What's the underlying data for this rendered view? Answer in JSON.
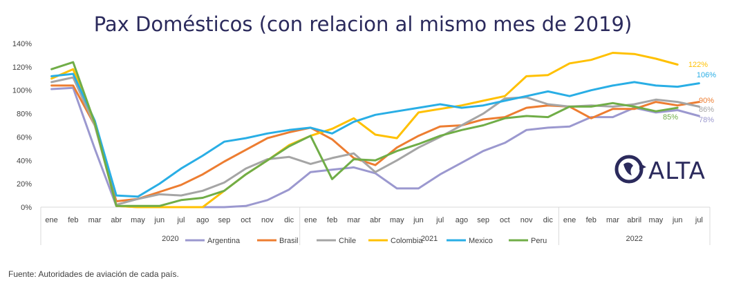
{
  "chart_data": {
    "type": "line",
    "title": "Pax Domésticos (con relacion al mismo mes de 2019)",
    "y_ticks": [
      "0%",
      "20%",
      "40%",
      "60%",
      "80%",
      "100%",
      "120%",
      "140%"
    ],
    "ylim": [
      0,
      140
    ],
    "categories": [
      "ene",
      "feb",
      "mar",
      "abr",
      "may",
      "jun",
      "jul",
      "ago",
      "sep",
      "oct",
      "nov",
      "dic",
      "ene",
      "feb",
      "mar",
      "abr",
      "may",
      "jun",
      "jul",
      "ago",
      "sep",
      "oct",
      "nov",
      "dic",
      "ene",
      "feb",
      "mar",
      "abril",
      "may",
      "jun",
      "jul"
    ],
    "years": [
      {
        "label": "2020",
        "start": 0,
        "end": 11
      },
      {
        "label": "2021",
        "start": 12,
        "end": 23
      },
      {
        "label": "2022",
        "start": 24,
        "end": 30
      }
    ],
    "series": [
      {
        "name": "Argentina",
        "color": "#9b98cf",
        "end_label": "78%",
        "values": [
          101,
          102,
          50,
          1,
          0,
          0,
          0,
          0,
          0,
          1,
          6,
          15,
          30,
          32,
          34,
          29,
          16,
          16,
          28,
          38,
          48,
          55,
          66,
          68,
          69,
          77,
          77,
          85,
          81,
          83,
          78
        ]
      },
      {
        "name": "Brasil",
        "color": "#ed7d31",
        "end_label": "90%",
        "values": [
          104,
          104,
          70,
          5,
          7,
          13,
          19,
          28,
          39,
          49,
          59,
          64,
          68,
          58,
          42,
          36,
          51,
          61,
          69,
          70,
          75,
          77,
          85,
          87,
          86,
          76,
          84,
          84,
          90,
          87,
          90
        ]
      },
      {
        "name": "Chile",
        "color": "#a5a5a5",
        "end_label": "86%",
        "values": [
          107,
          111,
          70,
          2,
          7,
          11,
          10,
          14,
          21,
          33,
          41,
          43,
          37,
          42,
          46,
          30,
          40,
          51,
          60,
          70,
          80,
          93,
          94,
          88,
          86,
          87,
          86,
          88,
          92,
          90,
          86
        ]
      },
      {
        "name": "Colombia",
        "color": "#ffc000",
        "end_label": "122%",
        "values": [
          110,
          118,
          72,
          1,
          0,
          0,
          0,
          0,
          14,
          28,
          40,
          53,
          61,
          67,
          76,
          62,
          59,
          81,
          84,
          87,
          91,
          95,
          112,
          113,
          123,
          126,
          132,
          131,
          127,
          122,
          null
        ]
      },
      {
        "name": "Mexico",
        "color": "#29aee5",
        "end_label": "106%",
        "values": [
          112,
          114,
          74,
          10,
          9,
          20,
          33,
          44,
          56,
          59,
          63,
          66,
          68,
          63,
          73,
          79,
          82,
          85,
          88,
          85,
          87,
          91,
          95,
          99,
          95,
          100,
          104,
          107,
          104,
          103,
          106
        ]
      },
      {
        "name": "Peru",
        "color": "#70ad47",
        "end_label": "85%",
        "values": [
          118,
          124,
          72,
          1,
          1,
          1,
          6,
          8,
          14,
          28,
          40,
          52,
          61,
          24,
          41,
          40,
          48,
          54,
          61,
          66,
          70,
          76,
          78,
          77,
          86,
          86,
          89,
          86,
          82,
          85,
          null
        ]
      }
    ]
  },
  "logo": {
    "text": "ALTA"
  },
  "source": "Fuente: Autoridades de aviación de cada país."
}
